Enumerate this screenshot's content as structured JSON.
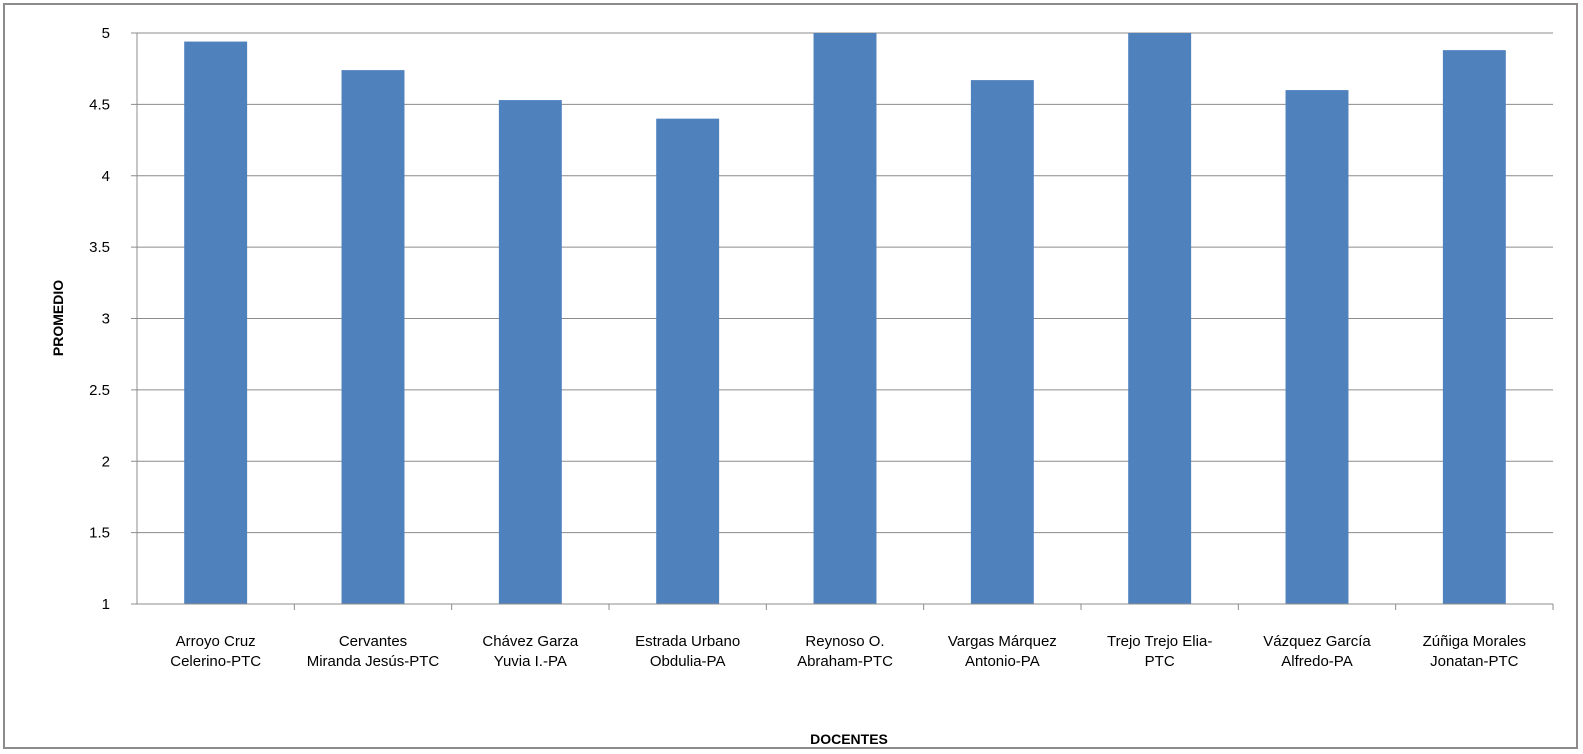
{
  "chart_data": {
    "type": "bar",
    "title": "",
    "xlabel": "DOCENTES",
    "ylabel": "PROMEDIO",
    "ylim": [
      1,
      5
    ],
    "yticks": [
      "1",
      "1.5",
      "2",
      "2.5",
      "3",
      "3.5",
      "4",
      "4.5",
      "5"
    ],
    "grid": true,
    "legend": "none",
    "bar_color": "#4F81BD",
    "categories": [
      [
        "Arroyo Cruz",
        "Celerino-PTC"
      ],
      [
        "Cervantes",
        "Miranda Jesús-PTC"
      ],
      [
        "Chávez Garza",
        "Yuvia I.-PA"
      ],
      [
        "Estrada Urbano",
        "Obdulia-PA"
      ],
      [
        "Reynoso O.",
        "Abraham-PTC"
      ],
      [
        "Vargas Márquez",
        "Antonio-PA"
      ],
      [
        "Trejo Trejo Elia-",
        "PTC"
      ],
      [
        "Vázquez García",
        "Alfredo-PA"
      ],
      [
        "Zúñiga Morales",
        "Jonatan-PTC"
      ]
    ],
    "values": [
      4.94,
      4.74,
      4.53,
      4.4,
      5.0,
      4.67,
      5.0,
      4.6,
      4.88
    ]
  }
}
